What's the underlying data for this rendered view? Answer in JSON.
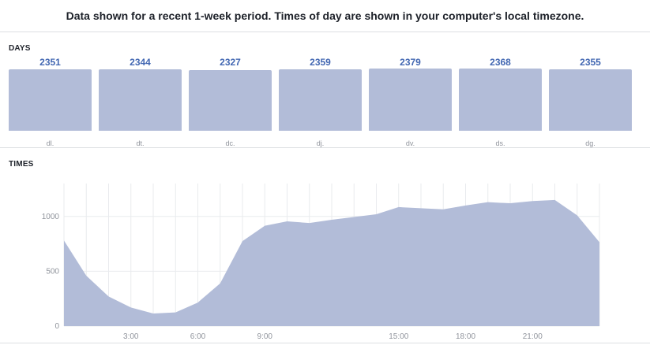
{
  "header": {
    "title": "Data shown for a recent 1-week period. Times of day are shown in your computer's local timezone."
  },
  "days_section": {
    "label": "DAYS"
  },
  "times_section": {
    "label": "TIMES"
  },
  "colors": {
    "bar": "#b2bcd8",
    "value_text": "#4267b2",
    "axis_text": "#90949c",
    "grid": "#e9ebee"
  },
  "chart_data": [
    {
      "type": "bar",
      "categories": [
        "dl.",
        "dt.",
        "dc.",
        "dj.",
        "dv.",
        "ds.",
        "dg."
      ],
      "values": [
        2351,
        2344,
        2327,
        2359,
        2379,
        2368,
        2355
      ],
      "title": "DAYS"
    },
    {
      "type": "area",
      "title": "TIMES",
      "x": [
        0,
        1,
        2,
        3,
        4,
        5,
        6,
        7,
        8,
        9,
        10,
        11,
        12,
        13,
        14,
        15,
        16,
        17,
        18,
        19,
        20,
        21,
        22,
        23,
        24
      ],
      "values": [
        780,
        460,
        270,
        170,
        115,
        125,
        215,
        390,
        775,
        915,
        955,
        940,
        970,
        995,
        1020,
        1085,
        1075,
        1065,
        1100,
        1130,
        1120,
        1140,
        1150,
        1010,
        765
      ],
      "xticks": [
        "3:00",
        "6:00",
        "9:00",
        "15:00",
        "18:00",
        "21:00"
      ],
      "xtick_values": [
        3,
        6,
        9,
        15,
        18,
        21
      ],
      "yticks": [
        "1000",
        "500",
        "0"
      ],
      "ytick_values": [
        1000,
        500,
        0
      ],
      "xlim": [
        0,
        24
      ],
      "ylim": [
        0,
        1300
      ],
      "grid": true
    }
  ]
}
